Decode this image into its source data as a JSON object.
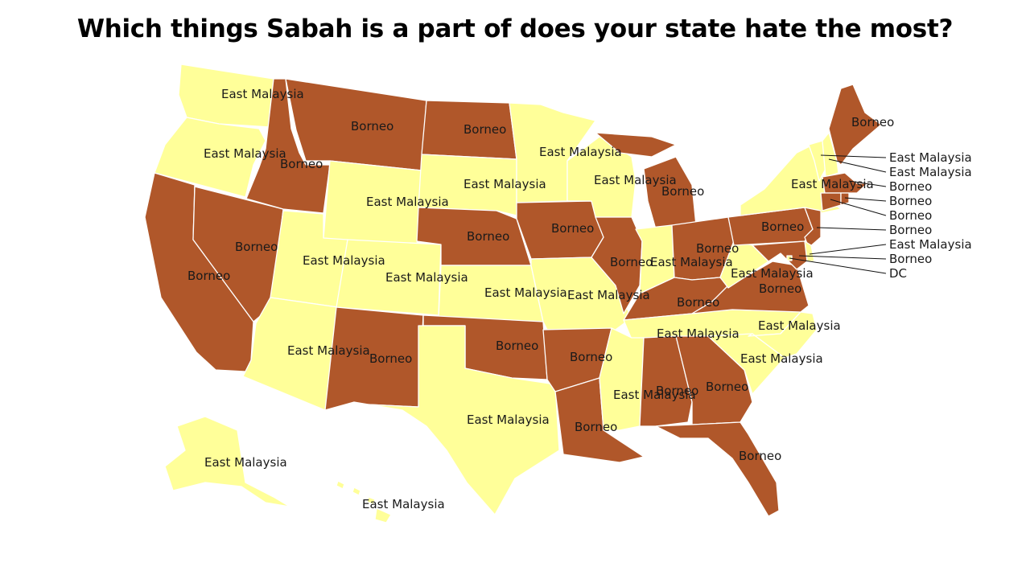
{
  "title": "Which things Sabah is a part of does your state hate the most?",
  "colors": {
    "Borneo": "#b0572a",
    "East Malaysia": "#ffff99"
  },
  "states": [
    {
      "id": "WA",
      "value": "East Malaysia"
    },
    {
      "id": "OR",
      "value": "East Malaysia"
    },
    {
      "id": "CA",
      "value": "Borneo"
    },
    {
      "id": "NV",
      "value": "Borneo"
    },
    {
      "id": "ID",
      "value": "Borneo"
    },
    {
      "id": "MT",
      "value": "Borneo"
    },
    {
      "id": "WY",
      "value": "East Malaysia"
    },
    {
      "id": "UT",
      "value": "East Malaysia"
    },
    {
      "id": "AZ",
      "value": "East Malaysia"
    },
    {
      "id": "CO",
      "value": "East Malaysia"
    },
    {
      "id": "NM",
      "value": "Borneo"
    },
    {
      "id": "ND",
      "value": "Borneo"
    },
    {
      "id": "SD",
      "value": "East Malaysia"
    },
    {
      "id": "NE",
      "value": "Borneo"
    },
    {
      "id": "KS",
      "value": "East Malaysia"
    },
    {
      "id": "OK",
      "value": "Borneo"
    },
    {
      "id": "TX",
      "value": "East Malaysia"
    },
    {
      "id": "MN",
      "value": "East Malaysia"
    },
    {
      "id": "IA",
      "value": "Borneo"
    },
    {
      "id": "MO",
      "value": "East Malaysia"
    },
    {
      "id": "AR",
      "value": "Borneo"
    },
    {
      "id": "LA",
      "value": "Borneo"
    },
    {
      "id": "WI",
      "value": "East Malaysia"
    },
    {
      "id": "IL",
      "value": "Borneo"
    },
    {
      "id": "MI",
      "value": "Borneo"
    },
    {
      "id": "IN",
      "value": "East Malaysia"
    },
    {
      "id": "OH",
      "value": "Borneo"
    },
    {
      "id": "KY",
      "value": "Borneo"
    },
    {
      "id": "TN",
      "value": "East Malaysia"
    },
    {
      "id": "MS",
      "value": "East Malaysia"
    },
    {
      "id": "AL",
      "value": "Borneo"
    },
    {
      "id": "GA",
      "value": "Borneo"
    },
    {
      "id": "FL",
      "value": "Borneo"
    },
    {
      "id": "SC",
      "value": "East Malaysia"
    },
    {
      "id": "NC",
      "value": "East Malaysia"
    },
    {
      "id": "VA",
      "value": "Borneo"
    },
    {
      "id": "WV",
      "value": "East Malaysia"
    },
    {
      "id": "PA",
      "value": "Borneo"
    },
    {
      "id": "NY",
      "value": "East Malaysia"
    },
    {
      "id": "NJ",
      "value": "Borneo"
    },
    {
      "id": "DE",
      "value": "East Malaysia"
    },
    {
      "id": "MD",
      "value": "Borneo"
    },
    {
      "id": "DC",
      "value": "DC"
    },
    {
      "id": "VT",
      "value": "East Malaysia"
    },
    {
      "id": "NH",
      "value": "East Malaysia"
    },
    {
      "id": "ME",
      "value": "Borneo"
    },
    {
      "id": "MA",
      "value": "Borneo"
    },
    {
      "id": "CT",
      "value": "Borneo"
    },
    {
      "id": "RI",
      "value": "Borneo"
    },
    {
      "id": "AK",
      "value": "East Malaysia"
    },
    {
      "id": "HI",
      "value": "East Malaysia"
    }
  ]
}
